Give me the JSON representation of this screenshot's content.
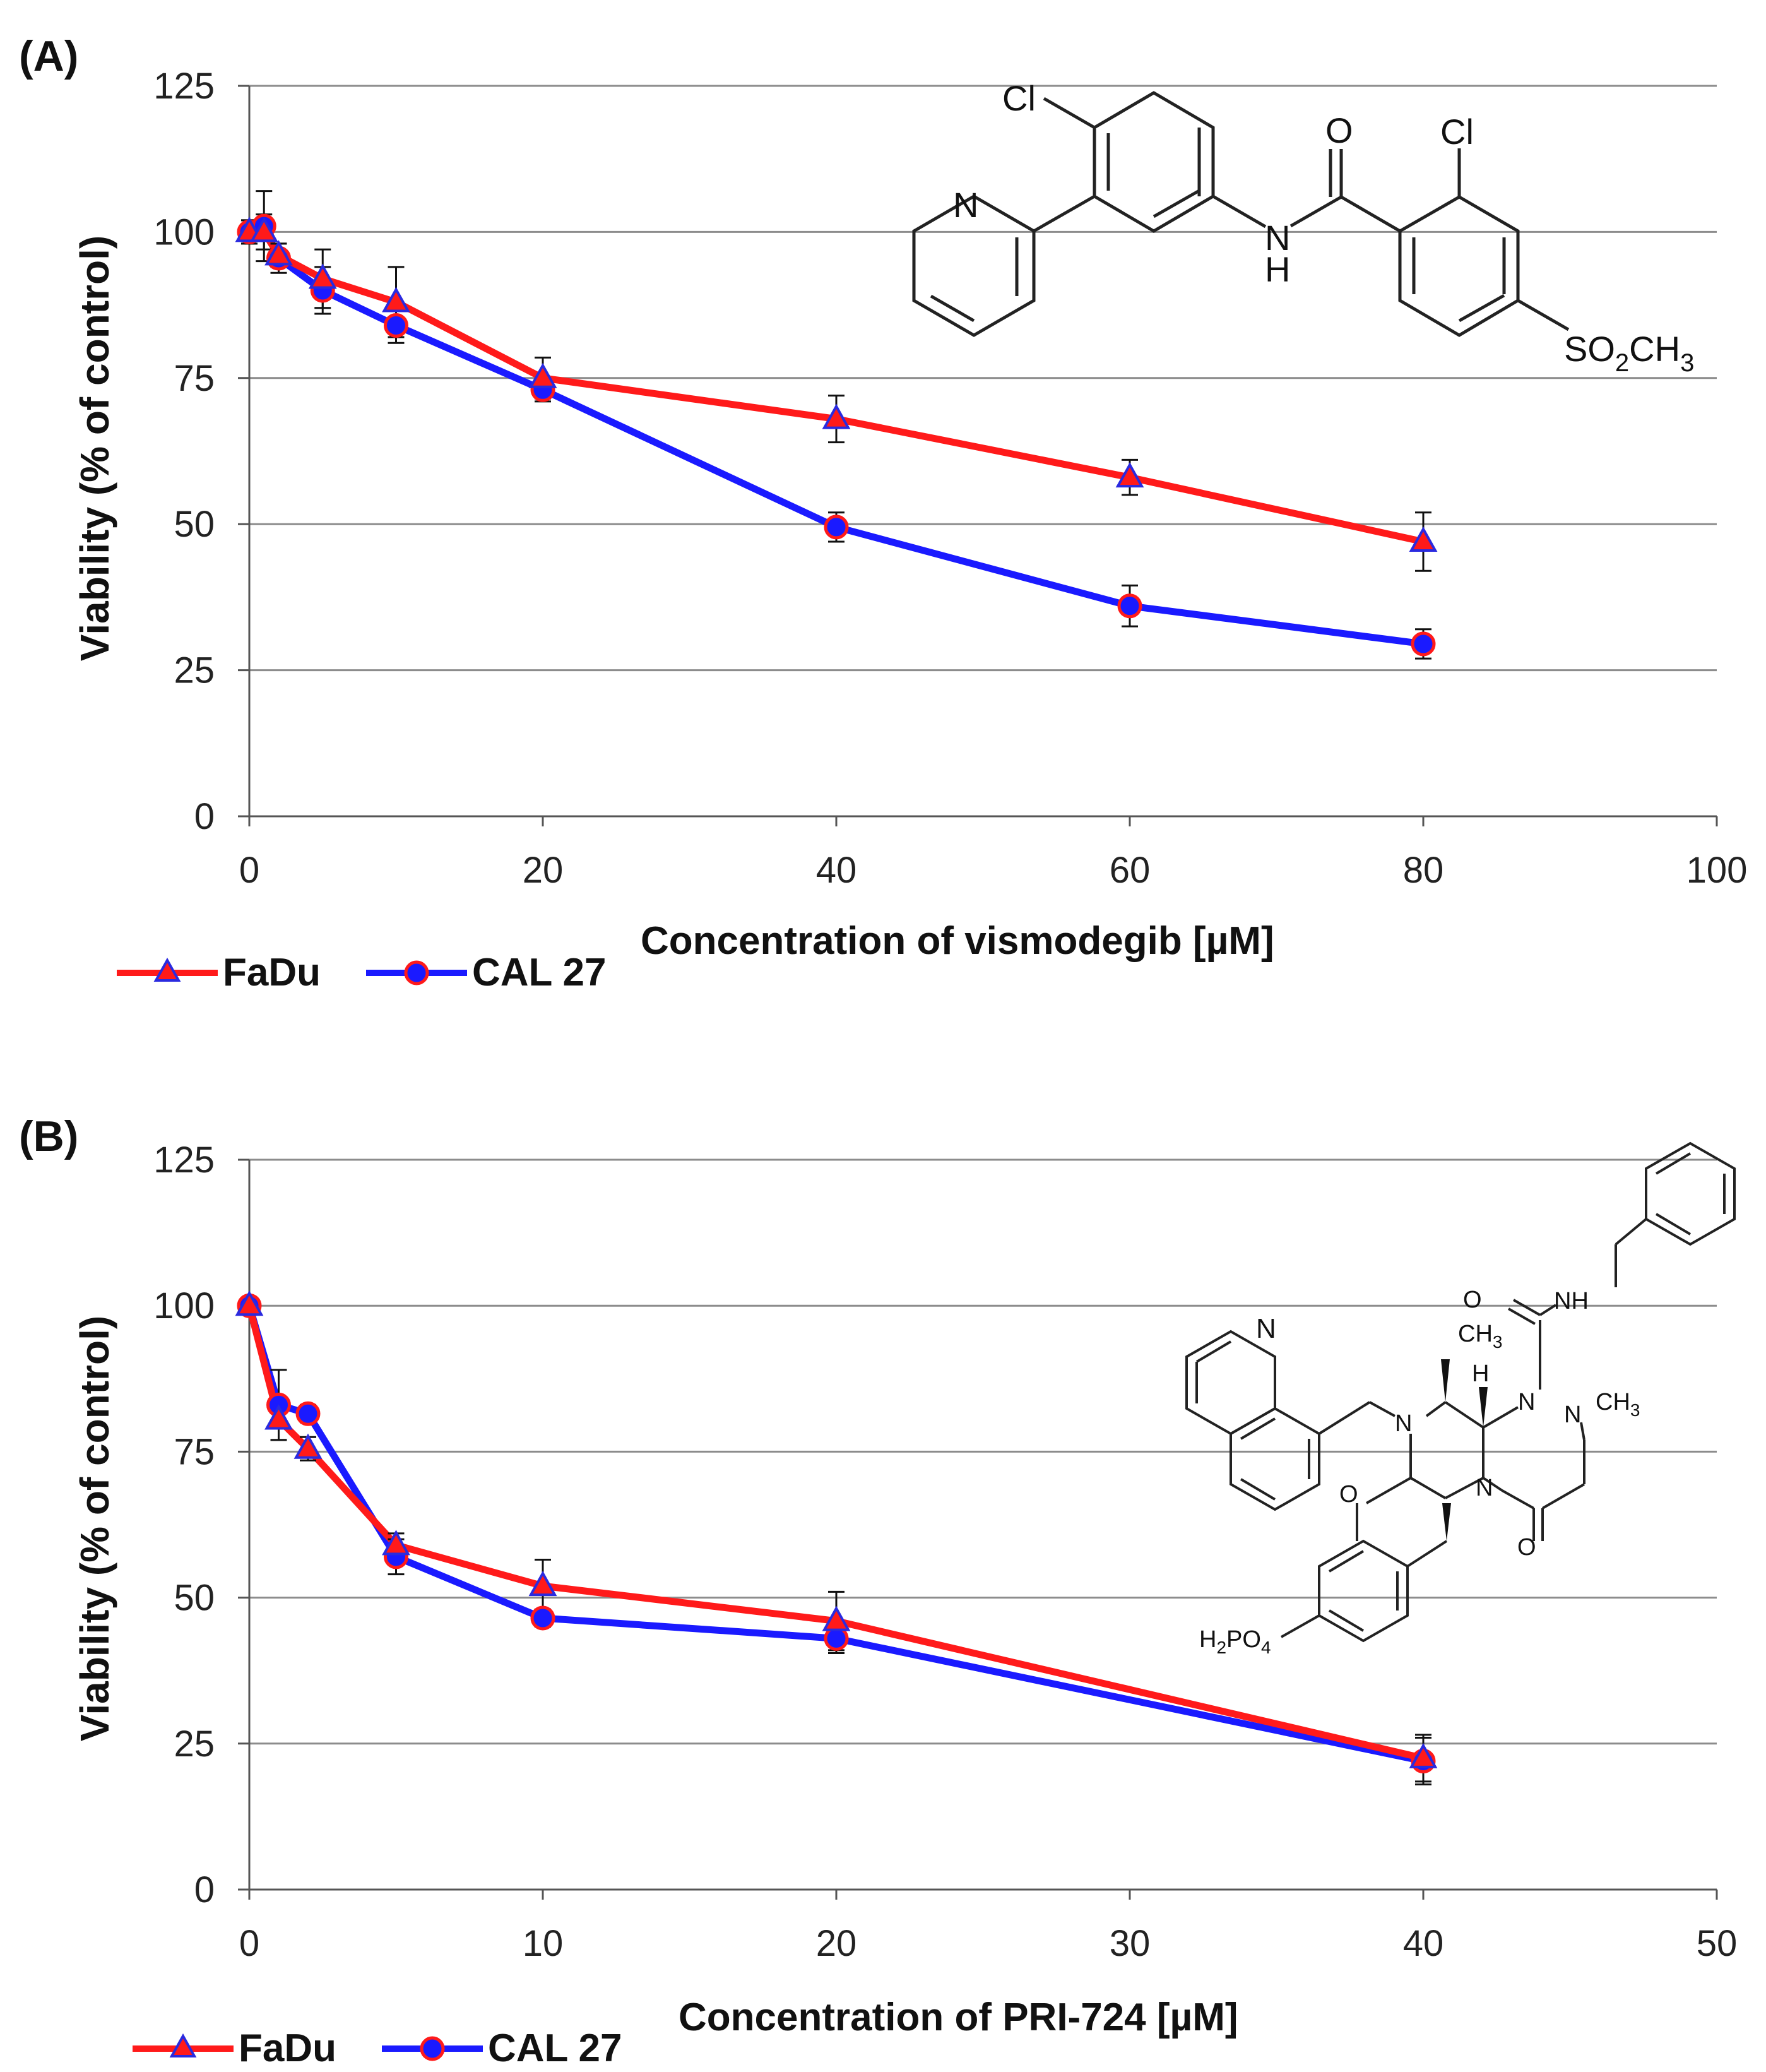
{
  "colors": {
    "fadu": "#ff1a1a",
    "cal27": "#1a1aff",
    "grid": "#8c8c8c",
    "axis": "#555555"
  },
  "chart_data": [
    {
      "panel_label": "(A)",
      "type": "line",
      "title": "",
      "xlabel": "Concentration of vismodegib [µM]",
      "ylabel": "Viability (% of control)",
      "xlim": [
        0,
        100
      ],
      "ylim": [
        0,
        125
      ],
      "x_ticks": [
        0,
        20,
        40,
        60,
        80,
        100
      ],
      "y_ticks": [
        0,
        25,
        50,
        75,
        100,
        125
      ],
      "grid": "horizontal",
      "legend_position": "bottom-left",
      "series": [
        {
          "name": "FaDu",
          "marker": "triangle",
          "x": [
            0,
            1,
            2,
            5,
            10,
            20,
            40,
            60,
            80
          ],
          "values": [
            100,
            100,
            96,
            92,
            88,
            75,
            68,
            58,
            47
          ],
          "errors": [
            2,
            3,
            2,
            5,
            6,
            3.5,
            4,
            3,
            5
          ]
        },
        {
          "name": "CAL 27",
          "marker": "circle",
          "x": [
            0,
            1,
            2,
            5,
            10,
            20,
            40,
            60,
            80
          ],
          "values": [
            100,
            101,
            95.5,
            90,
            84,
            73,
            49.5,
            36,
            29.5
          ],
          "errors": [
            2,
            6,
            2.5,
            4,
            3,
            2,
            2.5,
            3.5,
            2.5
          ]
        }
      ],
      "structure_labels": {
        "cl1": "Cl",
        "n_ring": "N",
        "o": "O",
        "cl2": "Cl",
        "nh_n": "N",
        "nh_h": "H",
        "so2ch3": "SO",
        "so2ch3_sub": "2",
        "so2ch3_tail": "CH",
        "so2ch3_sub2": "3"
      }
    },
    {
      "panel_label": "(B)",
      "type": "line",
      "title": "",
      "xlabel": "Concentration of PRI-724 [µM]",
      "ylabel": "Viability (% of control)",
      "xlim": [
        0,
        50
      ],
      "ylim": [
        0,
        125
      ],
      "x_ticks": [
        0,
        10,
        20,
        30,
        40,
        50
      ],
      "y_ticks": [
        0,
        25,
        50,
        75,
        100,
        125
      ],
      "grid": "horizontal",
      "legend_position": "bottom-left",
      "series": [
        {
          "name": "FaDu",
          "marker": "triangle",
          "x": [
            0,
            1,
            2,
            5,
            10,
            20,
            40
          ],
          "values": [
            100,
            80.5,
            75.5,
            59,
            52,
            46,
            22.5
          ],
          "errors": [
            1,
            3.5,
            2,
            2,
            4.5,
            5,
            4
          ]
        },
        {
          "name": "CAL 27",
          "marker": "circle",
          "x": [
            0,
            1,
            2,
            5,
            10,
            20,
            40
          ],
          "values": [
            100,
            83,
            81.5,
            57,
            46.5,
            43,
            22
          ],
          "errors": [
            1,
            6,
            1.5,
            3,
            1.5,
            2.5,
            4
          ]
        }
      ],
      "structure_labels": {
        "n_quin": "N",
        "o_top": "O",
        "nh": "NH",
        "ch3_top": "CH",
        "ch3_top_sub": "3",
        "h": "H",
        "n1": "N",
        "n2": "N",
        "n3": "N",
        "n4": "N",
        "ch3_right": "CH",
        "ch3_right_sub": "3",
        "o_left": "O",
        "o_bottom": "O",
        "h2po4_a": "H",
        "h2po4_b": "2",
        "h2po4_c": "PO",
        "h2po4_d": "4"
      }
    }
  ]
}
